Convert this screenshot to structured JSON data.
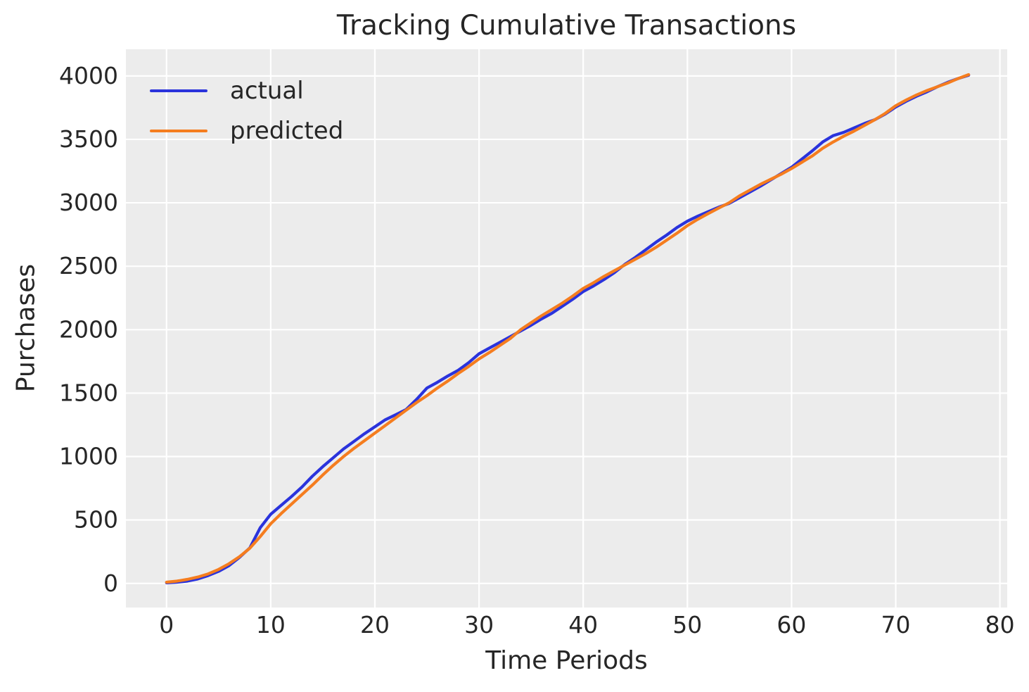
{
  "chart_data": {
    "type": "line",
    "title": "Tracking Cumulative Transactions",
    "xlabel": "Time Periods",
    "ylabel": "Purchases",
    "xlim": [
      -3.9,
      80.7
    ],
    "ylim": [
      -190,
      4210
    ],
    "x_ticks": [
      0,
      10,
      20,
      30,
      40,
      50,
      60,
      70,
      80
    ],
    "y_ticks": [
      0,
      500,
      1000,
      1500,
      2000,
      2500,
      3000,
      3500,
      4000
    ],
    "grid": true,
    "legend_position": "upper left",
    "x_step": 1,
    "series": [
      {
        "name": "actual",
        "color": "#2a33dc",
        "values": [
          5,
          10,
          18,
          35,
          62,
          95,
          140,
          205,
          280,
          440,
          545,
          615,
          685,
          760,
          845,
          920,
          990,
          1060,
          1120,
          1180,
          1235,
          1290,
          1330,
          1370,
          1450,
          1540,
          1585,
          1635,
          1680,
          1740,
          1810,
          1855,
          1900,
          1945,
          1990,
          2035,
          2085,
          2130,
          2185,
          2240,
          2300,
          2345,
          2395,
          2450,
          2515,
          2570,
          2630,
          2690,
          2745,
          2805,
          2855,
          2895,
          2930,
          2965,
          2995,
          3040,
          3085,
          3130,
          3180,
          3230,
          3280,
          3345,
          3410,
          3480,
          3530,
          3555,
          3590,
          3625,
          3655,
          3700,
          3755,
          3800,
          3840,
          3875,
          3915,
          3950,
          3980,
          4005
        ]
      },
      {
        "name": "predicted",
        "color": "#f57d1f",
        "values": [
          10,
          18,
          32,
          50,
          75,
          110,
          155,
          210,
          278,
          370,
          470,
          550,
          625,
          700,
          775,
          855,
          930,
          1000,
          1065,
          1125,
          1185,
          1245,
          1305,
          1365,
          1425,
          1480,
          1540,
          1595,
          1655,
          1710,
          1770,
          1820,
          1875,
          1930,
          2000,
          2055,
          2110,
          2160,
          2210,
          2265,
          2325,
          2370,
          2420,
          2465,
          2510,
          2555,
          2600,
          2650,
          2705,
          2760,
          2820,
          2870,
          2915,
          2958,
          3000,
          3055,
          3100,
          3145,
          3185,
          3225,
          3270,
          3320,
          3370,
          3430,
          3480,
          3525,
          3565,
          3610,
          3655,
          3705,
          3765,
          3810,
          3850,
          3885,
          3915,
          3945,
          3980,
          4010
        ]
      }
    ],
    "style": {
      "plot_background": "#ececec",
      "grid_color": "#ffffff",
      "text_color": "#262626",
      "figure_background": "#ffffff"
    }
  }
}
